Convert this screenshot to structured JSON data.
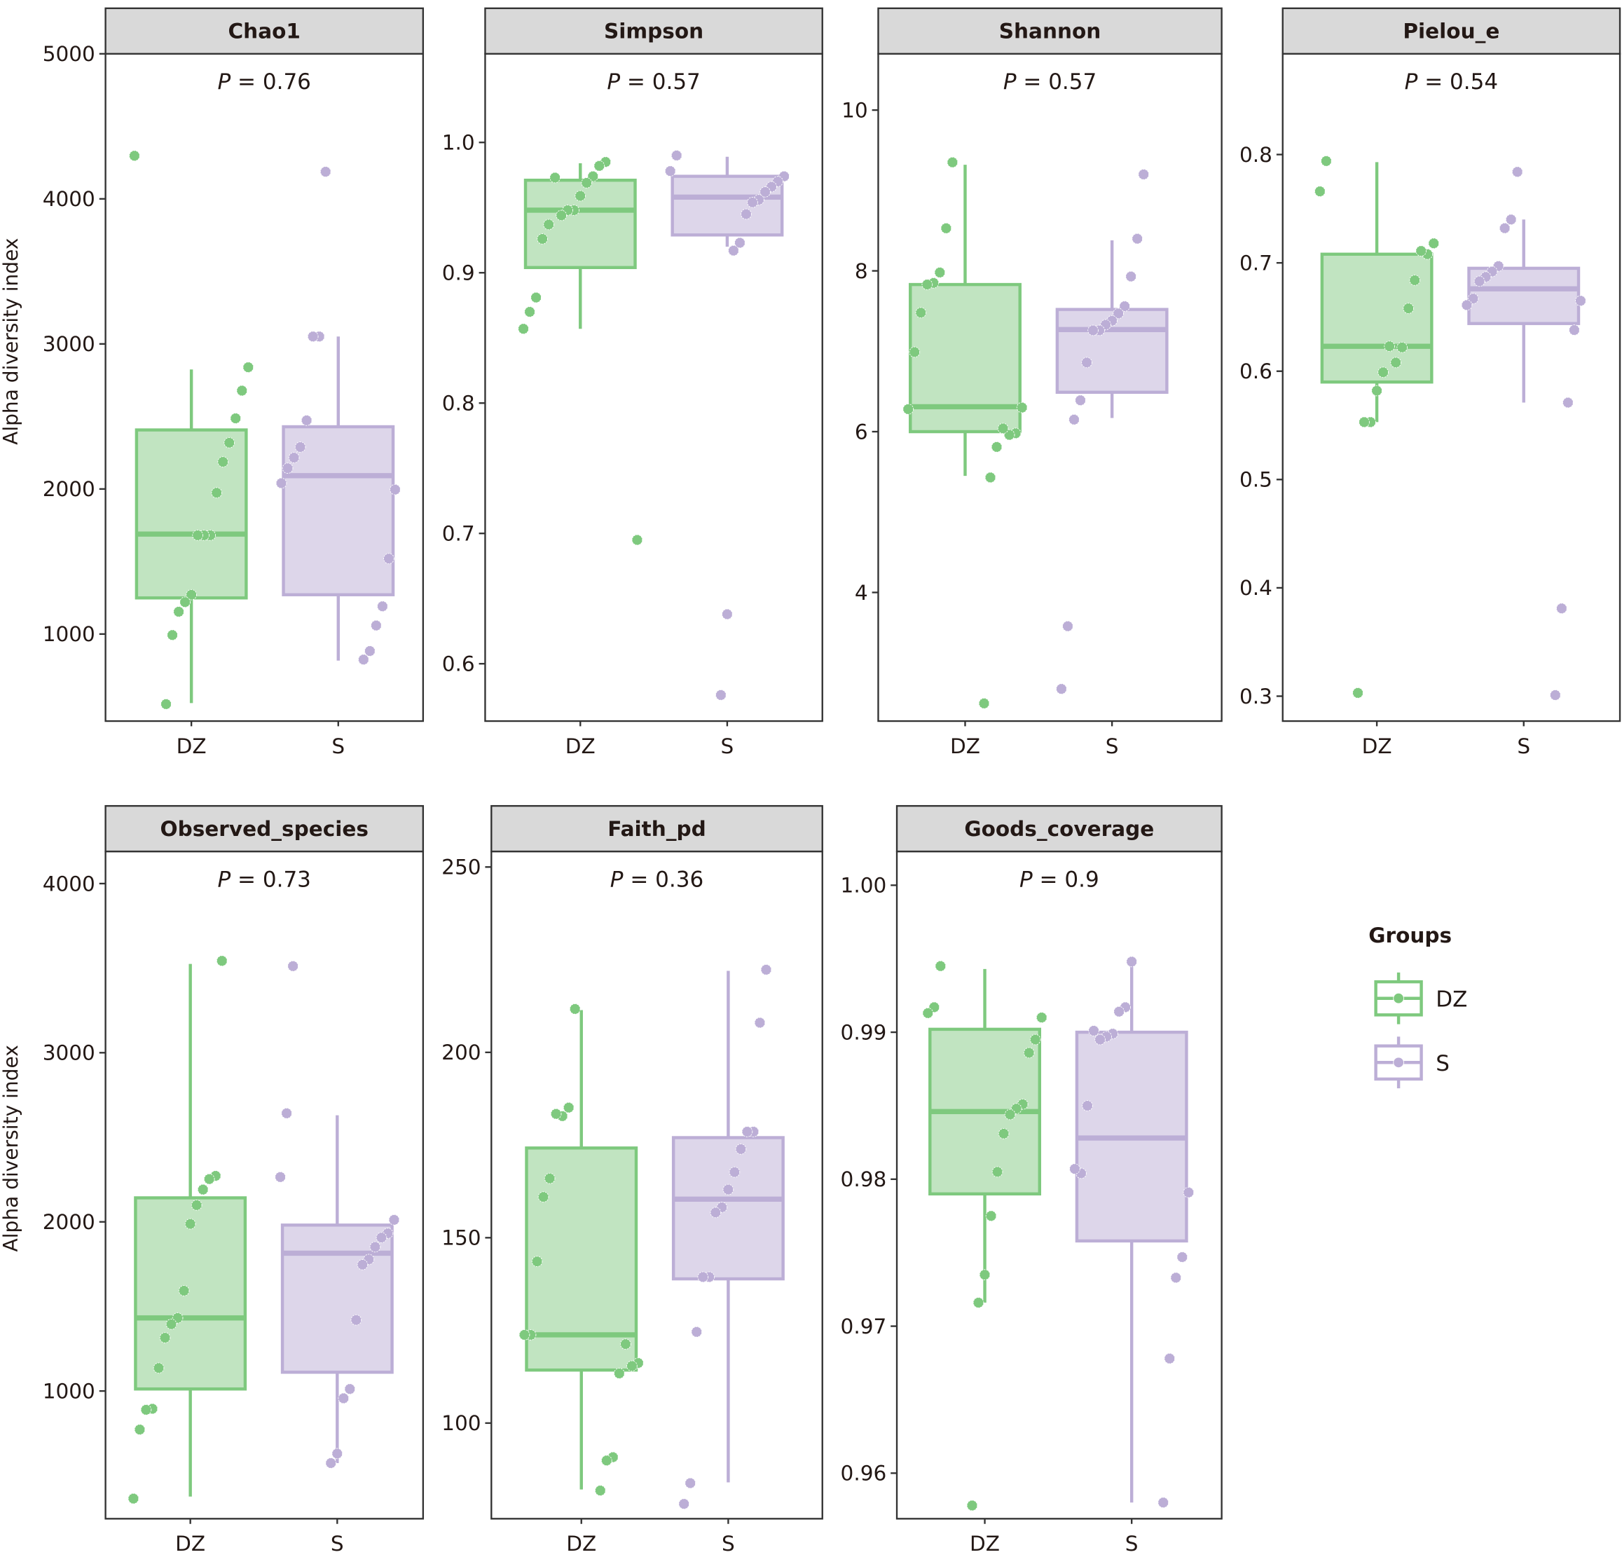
{
  "chart_data": {
    "type": "box",
    "ylabel": "Alpha diversity index",
    "legend": {
      "title": "Groups",
      "position": "right",
      "entries": [
        {
          "name": "DZ",
          "stroke": "#7ec97e",
          "fill": "#c1e4c1"
        },
        {
          "name": "S",
          "stroke": "#bcaed6",
          "fill": "#ddd6ea"
        }
      ]
    },
    "categories": [
      "DZ",
      "S"
    ],
    "panels": [
      {
        "title": "Chao1",
        "pvalue": "0.76",
        "ylim": [
          400,
          5000
        ],
        "yticks": [
          1000,
          2000,
          3000,
          4000,
          5000
        ],
        "ytick_labels": [
          "1000",
          "2000",
          "3000",
          "4000",
          "5000"
        ],
        "groups": [
          {
            "name": "DZ",
            "box": {
              "q1": 1249,
              "median": 1689,
              "q3": 2407,
              "whisker_low": 524,
              "whisker_high": 2824
            },
            "points": [
              4297,
              2839,
              2678,
              2487,
              2319,
              2187,
              1974,
              1681,
              1681,
              1681,
              1271,
              1220,
              1154,
              993,
              517
            ]
          },
          {
            "name": "S",
            "box": {
              "q1": 1271,
              "median": 2092,
              "q3": 2429,
              "whisker_low": 817,
              "whisker_high": 3051
            },
            "points": [
              4187,
              3051,
              3051,
              2473,
              2289,
              2216,
              2143,
              2040,
              1996,
              1520,
              1191,
              1059,
              883,
              824
            ]
          }
        ]
      },
      {
        "title": "Simpson",
        "pvalue": "0.57",
        "ylim": [
          0.556,
          1.068
        ],
        "yticks": [
          0.6,
          0.7,
          0.8,
          0.9,
          1.0
        ],
        "ytick_labels": [
          "0.6",
          "0.7",
          "0.8",
          "0.9",
          "1.0"
        ],
        "groups": [
          {
            "name": "DZ",
            "box": {
              "q1": 0.904,
              "median": 0.948,
              "q3": 0.971,
              "whisker_low": 0.857,
              "whisker_high": 0.984
            },
            "points": [
              0.985,
              0.982,
              0.974,
              0.969,
              0.959,
              0.948,
              0.948,
              0.944,
              0.973,
              0.937,
              0.926,
              0.881,
              0.87,
              0.857,
              0.695
            ]
          },
          {
            "name": "S",
            "box": {
              "q1": 0.929,
              "median": 0.958,
              "q3": 0.974,
              "whisker_low": 0.92,
              "whisker_high": 0.989
            },
            "points": [
              0.99,
              0.978,
              0.974,
              0.97,
              0.966,
              0.962,
              0.956,
              0.954,
              0.945,
              0.923,
              0.917,
              0.638,
              0.576
            ]
          }
        ]
      },
      {
        "title": "Shannon",
        "pvalue": "0.57",
        "ylim": [
          2.4,
          10.7
        ],
        "yticks": [
          4,
          6,
          8,
          10
        ],
        "ytick_labels": [
          "4",
          "6",
          "8",
          "10"
        ],
        "groups": [
          {
            "name": "DZ",
            "box": {
              "q1": 6.0,
              "median": 6.31,
              "q3": 7.83,
              "whisker_low": 5.45,
              "whisker_high": 9.32
            },
            "points": [
              9.35,
              8.53,
              7.98,
              7.85,
              7.83,
              7.48,
              6.99,
              6.28,
              6.3,
              5.98,
              5.96,
              6.04,
              5.81,
              5.43,
              2.62
            ]
          },
          {
            "name": "S",
            "box": {
              "q1": 6.49,
              "median": 7.27,
              "q3": 7.52,
              "whisker_low": 6.17,
              "whisker_high": 8.38
            },
            "points": [
              9.2,
              8.4,
              7.93,
              7.56,
              7.47,
              7.38,
              7.33,
              7.26,
              7.26,
              6.86,
              6.39,
              6.15,
              3.58,
              2.8
            ]
          }
        ]
      },
      {
        "title": "Pielou_e",
        "pvalue": "0.54",
        "ylim": [
          0.277,
          0.893
        ],
        "yticks": [
          0.3,
          0.4,
          0.5,
          0.6,
          0.7,
          0.8
        ],
        "ytick_labels": [
          "0.3",
          "0.4",
          "0.5",
          "0.6",
          "0.7",
          "0.8"
        ],
        "groups": [
          {
            "name": "DZ",
            "box": {
              "q1": 0.59,
              "median": 0.623,
              "q3": 0.708,
              "whisker_low": 0.553,
              "whisker_high": 0.793
            },
            "points": [
              0.794,
              0.766,
              0.718,
              0.708,
              0.711,
              0.684,
              0.658,
              0.622,
              0.608,
              0.623,
              0.599,
              0.582,
              0.553,
              0.553,
              0.303
            ]
          },
          {
            "name": "S",
            "box": {
              "q1": 0.644,
              "median": 0.676,
              "q3": 0.695,
              "whisker_low": 0.571,
              "whisker_high": 0.74
            },
            "points": [
              0.784,
              0.74,
              0.732,
              0.697,
              0.692,
              0.687,
              0.683,
              0.667,
              0.661,
              0.665,
              0.638,
              0.571,
              0.381,
              0.301
            ]
          }
        ]
      },
      {
        "title": "Observed_species",
        "pvalue": "0.73",
        "ylim": [
          245,
          4190
        ],
        "yticks": [
          1000,
          2000,
          3000,
          4000
        ],
        "ytick_labels": [
          "1000",
          "2000",
          "3000",
          "4000"
        ],
        "groups": [
          {
            "name": "DZ",
            "box": {
              "q1": 1012,
              "median": 1432,
              "q3": 2142,
              "whisker_low": 376,
              "whisker_high": 3525
            },
            "points": [
              3543,
              2272,
              2253,
              2191,
              2099,
              1988,
              1593,
              1432,
              1395,
              1315,
              1136,
              895,
              889,
              772,
              364
            ]
          },
          {
            "name": "S",
            "box": {
              "q1": 1111,
              "median": 1815,
              "q3": 1981,
              "whisker_low": 574,
              "whisker_high": 2630
            },
            "points": [
              3512,
              2642,
              2265,
              2012,
              1932,
              1907,
              1852,
              1778,
              1747,
              1420,
              1012,
              957,
              630,
              574
            ]
          }
        ]
      },
      {
        "title": "Faith_pd",
        "pvalue": "0.36",
        "ylim": [
          74.2,
          254.2
        ],
        "yticks": [
          100,
          150,
          200,
          250
        ],
        "ytick_labels": [
          "100",
          "150",
          "200",
          "250"
        ],
        "groups": [
          {
            "name": "DZ",
            "box": {
              "q1": 114.3,
              "median": 123.8,
              "q3": 174.2,
              "whisker_low": 82.1,
              "whisker_high": 211.4
            },
            "points": [
              211.7,
              185.1,
              182.8,
              183.4,
              166.0,
              161.0,
              143.6,
              123.8,
              123.8,
              116.2,
              115.4,
              121.3,
              113.4,
              90.8,
              89.9,
              81.8
            ]
          },
          {
            "name": "S",
            "box": {
              "q1": 138.9,
              "median": 160.4,
              "q3": 177.0,
              "whisker_low": 84.0,
              "whisker_high": 222.0
            },
            "points": [
              222.3,
              208.0,
              178.6,
              178.6,
              173.9,
              167.7,
              163.0,
              158.2,
              156.8,
              139.4,
              139.4,
              124.6,
              83.8,
              78.2
            ]
          }
        ]
      },
      {
        "title": "Goods_coverage",
        "pvalue": "0.9",
        "ylim": [
          0.9569,
          1.0023
        ],
        "yticks": [
          0.96,
          0.97,
          0.98,
          0.99,
          1.0
        ],
        "ytick_labels": [
          "0.96",
          "0.97",
          "0.98",
          "0.99",
          "1.00"
        ],
        "groups": [
          {
            "name": "DZ",
            "box": {
              "q1": 0.979,
              "median": 0.9846,
              "q3": 0.9902,
              "whisker_low": 0.9716,
              "whisker_high": 0.9943
            },
            "points": [
              0.9945,
              0.9917,
              0.9913,
              0.991,
              0.9895,
              0.9886,
              0.9851,
              0.9848,
              0.9844,
              0.9831,
              0.9805,
              0.9775,
              0.9735,
              0.9716,
              0.9578
            ]
          },
          {
            "name": "S",
            "box": {
              "q1": 0.9758,
              "median": 0.9828,
              "q3": 0.99,
              "whisker_low": 0.958,
              "whisker_high": 0.9948
            },
            "points": [
              0.9948,
              0.9917,
              0.9914,
              0.9899,
              0.9897,
              0.9895,
              0.9901,
              0.985,
              0.9804,
              0.9807,
              0.9791,
              0.9747,
              0.9733,
              0.9678,
              0.958
            ]
          }
        ]
      }
    ]
  }
}
